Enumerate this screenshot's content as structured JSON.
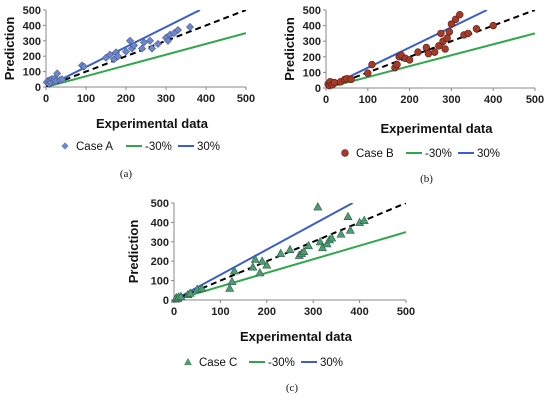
{
  "figure": {
    "colors": {
      "minus30": "#2ea84a",
      "plus30": "#3a5fcd",
      "ideal": "#000000",
      "axis": "#888888",
      "grid": "#d9d9d9"
    }
  },
  "chart_data": [
    {
      "type": "scatter",
      "panel_label": "(a)",
      "xlabel": "Experimental data",
      "ylabel": "Prediction",
      "xlim": [
        0,
        500
      ],
      "ylim": [
        0,
        500
      ],
      "xticks": [
        0,
        100,
        200,
        300,
        400,
        500
      ],
      "yticks": [
        0,
        100,
        200,
        300,
        400,
        500
      ],
      "grid": false,
      "legend_position": "bottom",
      "marker": "diamond",
      "marker_color": "#6f86c9",
      "series": [
        {
          "name": "Case A",
          "points": [
            [
              2,
              30
            ],
            [
              5,
              40
            ],
            [
              8,
              20
            ],
            [
              10,
              45
            ],
            [
              12,
              30
            ],
            [
              15,
              52
            ],
            [
              20,
              40
            ],
            [
              22,
              55
            ],
            [
              25,
              40
            ],
            [
              28,
              88
            ],
            [
              35,
              45
            ],
            [
              40,
              50
            ],
            [
              90,
              140
            ],
            [
              95,
              132
            ],
            [
              150,
              190
            ],
            [
              160,
              210
            ],
            [
              170,
              180
            ],
            [
              175,
              225
            ],
            [
              180,
              200
            ],
            [
              200,
              230
            ],
            [
              210,
              300
            ],
            [
              215,
              250
            ],
            [
              220,
              270
            ],
            [
              240,
              250
            ],
            [
              245,
              290
            ],
            [
              260,
              300
            ],
            [
              265,
              250
            ],
            [
              280,
              280
            ],
            [
              300,
              320
            ],
            [
              305,
              300
            ],
            [
              310,
              340
            ],
            [
              320,
              350
            ],
            [
              330,
              370
            ],
            [
              360,
              390
            ]
          ]
        },
        {
          "name": "-30%",
          "line": [
            [
              0,
              0
            ],
            [
              500,
              350
            ]
          ]
        },
        {
          "name": "30%",
          "line": [
            [
              0,
              0
            ],
            [
              385,
              500
            ]
          ]
        }
      ],
      "reference_line": [
        [
          0,
          0
        ],
        [
          500,
          500
        ]
      ]
    },
    {
      "type": "scatter",
      "panel_label": "(b)",
      "xlabel": "Experimental data",
      "ylabel": "Prediction",
      "xlim": [
        0,
        500
      ],
      "ylim": [
        0,
        500
      ],
      "xticks": [
        0,
        100,
        200,
        300,
        400,
        500
      ],
      "yticks": [
        0,
        100,
        200,
        300,
        400,
        500
      ],
      "grid": false,
      "legend_position": "bottom",
      "marker": "circle",
      "marker_color": "#a33a2a",
      "series": [
        {
          "name": "Case B",
          "points": [
            [
              5,
              25
            ],
            [
              8,
              15
            ],
            [
              10,
              40
            ],
            [
              15,
              20
            ],
            [
              20,
              35
            ],
            [
              35,
              40
            ],
            [
              45,
              55
            ],
            [
              50,
              60
            ],
            [
              60,
              55
            ],
            [
              100,
              95
            ],
            [
              110,
              150
            ],
            [
              165,
              130
            ],
            [
              170,
              150
            ],
            [
              175,
              200
            ],
            [
              180,
              210
            ],
            [
              190,
              190
            ],
            [
              200,
              180
            ],
            [
              220,
              230
            ],
            [
              240,
              260
            ],
            [
              245,
              220
            ],
            [
              260,
              230
            ],
            [
              270,
              270
            ],
            [
              275,
              350
            ],
            [
              280,
              300
            ],
            [
              285,
              250
            ],
            [
              290,
              320
            ],
            [
              295,
              360
            ],
            [
              300,
              410
            ],
            [
              310,
              440
            ],
            [
              320,
              470
            ],
            [
              330,
              340
            ],
            [
              340,
              350
            ],
            [
              360,
              380
            ],
            [
              400,
              400
            ]
          ]
        },
        {
          "name": "-30%",
          "line": [
            [
              0,
              0
            ],
            [
              500,
              350
            ]
          ]
        },
        {
          "name": "30%",
          "line": [
            [
              0,
              0
            ],
            [
              385,
              500
            ]
          ]
        }
      ],
      "reference_line": [
        [
          0,
          0
        ],
        [
          500,
          500
        ]
      ]
    },
    {
      "type": "scatter",
      "panel_label": "(c)",
      "xlabel": "Experimental data",
      "ylabel": "Prediction",
      "xlim": [
        0,
        500
      ],
      "ylim": [
        0,
        500
      ],
      "xticks": [
        0,
        100,
        200,
        300,
        400,
        500
      ],
      "yticks": [
        0,
        100,
        200,
        300,
        400,
        500
      ],
      "grid": false,
      "legend_position": "bottom",
      "marker": "triangle",
      "marker_color": "#4f9b74",
      "series": [
        {
          "name": "Case C",
          "points": [
            [
              3,
              5
            ],
            [
              5,
              12
            ],
            [
              8,
              8
            ],
            [
              10,
              15
            ],
            [
              15,
              18
            ],
            [
              30,
              28
            ],
            [
              35,
              35
            ],
            [
              50,
              55
            ],
            [
              60,
              60
            ],
            [
              120,
              60
            ],
            [
              125,
              95
            ],
            [
              130,
              150
            ],
            [
              170,
              170
            ],
            [
              175,
              210
            ],
            [
              185,
              140
            ],
            [
              190,
              200
            ],
            [
              200,
              180
            ],
            [
              230,
              240
            ],
            [
              250,
              260
            ],
            [
              270,
              230
            ],
            [
              275,
              240
            ],
            [
              280,
              250
            ],
            [
              290,
              280
            ],
            [
              310,
              480
            ],
            [
              315,
              300
            ],
            [
              320,
              270
            ],
            [
              330,
              290
            ],
            [
              335,
              310
            ],
            [
              340,
              320
            ],
            [
              360,
              340
            ],
            [
              375,
              430
            ],
            [
              380,
              360
            ],
            [
              400,
              400
            ],
            [
              410,
              410
            ]
          ]
        },
        {
          "name": "-30%",
          "line": [
            [
              0,
              0
            ],
            [
              500,
              350
            ]
          ]
        },
        {
          "name": "30%",
          "line": [
            [
              0,
              0
            ],
            [
              385,
              500
            ]
          ]
        }
      ],
      "reference_line": [
        [
          0,
          0
        ],
        [
          500,
          500
        ]
      ]
    }
  ]
}
